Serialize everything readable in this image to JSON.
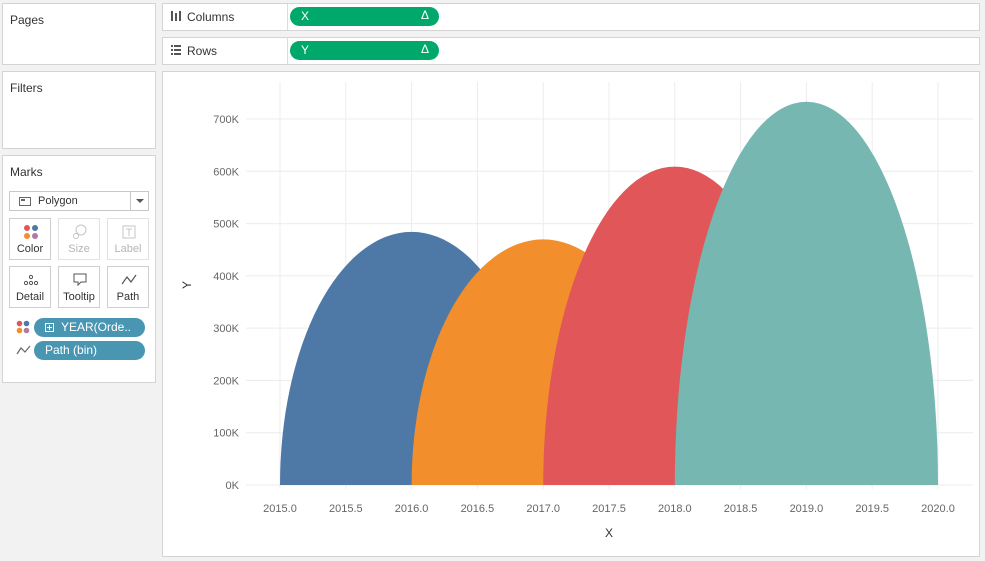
{
  "left_panel": {
    "pages": {
      "title": "Pages"
    },
    "filters": {
      "title": "Filters"
    },
    "marks": {
      "title": "Marks",
      "mark_type": "Polygon",
      "buttons": {
        "color": "Color",
        "size": "Size",
        "label": "Label",
        "detail": "Detail",
        "tooltip": "Tooltip",
        "path": "Path"
      },
      "fields": [
        {
          "encoding": "color",
          "label": "YEAR(Orde..",
          "icon": "plus-box-icon"
        },
        {
          "encoding": "path",
          "label": "Path (bin)"
        }
      ]
    }
  },
  "shelves": {
    "columns": {
      "label": "Columns",
      "pill": "X",
      "pill_symbol": "Δ"
    },
    "rows": {
      "label": "Rows",
      "pill": "Y",
      "pill_symbol": "Δ"
    }
  },
  "colors": {
    "pill_green": "#00a86b",
    "pill_blue": "#4996b2",
    "series": [
      "#4e79a7",
      "#f28e2b",
      "#e15759",
      "#76b7b2"
    ]
  },
  "chart_data": {
    "type": "area",
    "title": "",
    "xlabel": "X",
    "ylabel": "Y",
    "xlim": [
      2015.0,
      2020.0
    ],
    "ylim": [
      0,
      700000
    ],
    "x_ticks": [
      "2015.0",
      "2015.5",
      "2016.0",
      "2016.5",
      "2017.0",
      "2017.5",
      "2018.0",
      "2018.5",
      "2019.0",
      "2019.5",
      "2020.0"
    ],
    "y_ticks": [
      "0K",
      "100K",
      "200K",
      "300K",
      "400K",
      "500K",
      "600K",
      "700K"
    ],
    "grid": true,
    "series": [
      {
        "x_start": 2015.0,
        "x_peak": 2016.0,
        "x_end": 2017.0,
        "peak": 484000,
        "color": "#4e79a7"
      },
      {
        "x_start": 2016.0,
        "x_peak": 2017.0,
        "x_end": 2018.0,
        "peak": 470000,
        "color": "#f28e2b"
      },
      {
        "x_start": 2017.0,
        "x_peak": 2018.0,
        "x_end": 2019.0,
        "peak": 609000,
        "color": "#e15759"
      },
      {
        "x_start": 2018.0,
        "x_peak": 2019.0,
        "x_end": 2020.0,
        "peak": 733000,
        "color": "#76b7b2"
      }
    ]
  }
}
